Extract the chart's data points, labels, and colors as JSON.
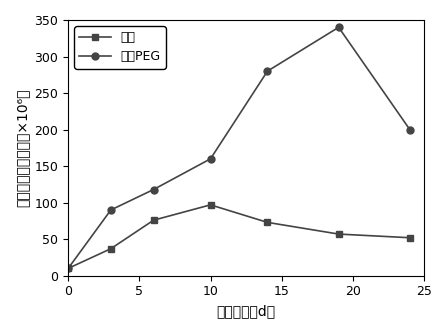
{
  "control_x": [
    0,
    3,
    6,
    10,
    14,
    19,
    24
  ],
  "control_y": [
    10,
    37,
    76,
    97,
    73,
    57,
    52
  ],
  "peg_x": [
    0,
    3,
    6,
    10,
    14,
    19,
    24
  ],
  "peg_y": [
    10,
    90,
    118,
    160,
    280,
    340,
    200
  ],
  "xlabel": "浸出时间（d）",
  "ylabel": "浸出液中细菌浓度（×10⁶）",
  "legend_control": "对照",
  "legend_peg": "添加PEG",
  "xlim": [
    0,
    25
  ],
  "ylim": [
    0,
    350
  ],
  "xticks": [
    0,
    5,
    10,
    15,
    20,
    25
  ],
  "yticks": [
    0,
    50,
    100,
    150,
    200,
    250,
    300,
    350
  ],
  "control_color": "#444444",
  "peg_color": "#444444",
  "marker_control": "s",
  "marker_peg": "o",
  "linewidth": 1.2,
  "markersize": 5,
  "label_fontsize": 10,
  "tick_fontsize": 9,
  "legend_fontsize": 9
}
